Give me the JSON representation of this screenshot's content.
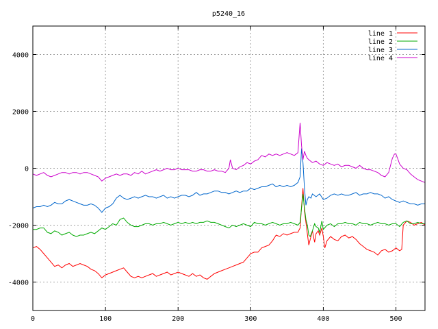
{
  "chart_data": {
    "type": "line",
    "title": "p5240_16",
    "xlabel": "",
    "ylabel": "",
    "xlim": [
      0,
      540
    ],
    "ylim": [
      -5000,
      5000
    ],
    "x_ticks": [
      0,
      100,
      200,
      300,
      400,
      500
    ],
    "y_ticks": [
      -4000,
      -2000,
      0,
      2000,
      4000
    ],
    "grid": true,
    "legend_position": "top-right",
    "series": [
      {
        "name": "line 1",
        "color": "#ff0000",
        "x": [
          0,
          5,
          10,
          15,
          20,
          25,
          30,
          35,
          40,
          45,
          50,
          55,
          60,
          65,
          70,
          75,
          80,
          85,
          90,
          95,
          100,
          105,
          110,
          115,
          120,
          125,
          130,
          135,
          140,
          145,
          150,
          155,
          160,
          165,
          170,
          175,
          180,
          185,
          190,
          195,
          200,
          205,
          210,
          215,
          220,
          225,
          230,
          235,
          240,
          245,
          250,
          255,
          260,
          265,
          270,
          275,
          280,
          285,
          290,
          295,
          300,
          305,
          310,
          315,
          320,
          325,
          330,
          335,
          340,
          345,
          350,
          355,
          360,
          365,
          368,
          370,
          372,
          374,
          376,
          378,
          380,
          382,
          385,
          388,
          390,
          393,
          395,
          398,
          400,
          402,
          405,
          410,
          415,
          420,
          425,
          430,
          435,
          440,
          445,
          450,
          455,
          460,
          465,
          470,
          475,
          480,
          485,
          490,
          495,
          500,
          505,
          508,
          510,
          515,
          520,
          525,
          530,
          535,
          540
        ],
        "y": [
          -2800,
          -2750,
          -2850,
          -3000,
          -3150,
          -3300,
          -3450,
          -3400,
          -3500,
          -3400,
          -3350,
          -3450,
          -3400,
          -3350,
          -3400,
          -3450,
          -3550,
          -3600,
          -3700,
          -3850,
          -3750,
          -3700,
          -3650,
          -3600,
          -3550,
          -3500,
          -3650,
          -3800,
          -3850,
          -3800,
          -3850,
          -3800,
          -3750,
          -3700,
          -3800,
          -3750,
          -3700,
          -3650,
          -3750,
          -3700,
          -3650,
          -3700,
          -3750,
          -3800,
          -3700,
          -3800,
          -3750,
          -3850,
          -3900,
          -3800,
          -3700,
          -3650,
          -3600,
          -3550,
          -3500,
          -3450,
          -3400,
          -3350,
          -3300,
          -3150,
          -3000,
          -2950,
          -2950,
          -2800,
          -2750,
          -2700,
          -2550,
          -2350,
          -2400,
          -2300,
          -2350,
          -2300,
          -2250,
          -2250,
          -2100,
          -1350,
          -700,
          -1500,
          -1900,
          -2300,
          -2700,
          -2500,
          -2200,
          -2600,
          -2300,
          -2200,
          -2350,
          -2100,
          -2400,
          -2800,
          -2550,
          -2400,
          -2500,
          -2550,
          -2400,
          -2350,
          -2450,
          -2400,
          -2500,
          -2650,
          -2750,
          -2850,
          -2900,
          -2950,
          -3050,
          -2900,
          -2850,
          -2950,
          -2900,
          -2800,
          -2900,
          -2850,
          -2000,
          -1850,
          -1900,
          -2000,
          -1950,
          -1900,
          -2000
        ]
      },
      {
        "name": "line 2",
        "color": "#00aa00",
        "x": [
          0,
          5,
          10,
          15,
          20,
          25,
          30,
          35,
          40,
          45,
          50,
          55,
          60,
          65,
          70,
          75,
          80,
          85,
          90,
          95,
          100,
          105,
          110,
          115,
          120,
          125,
          130,
          135,
          140,
          145,
          150,
          155,
          160,
          165,
          170,
          175,
          180,
          185,
          190,
          195,
          200,
          205,
          210,
          215,
          220,
          225,
          230,
          235,
          240,
          245,
          250,
          255,
          260,
          265,
          270,
          275,
          280,
          285,
          290,
          295,
          300,
          305,
          310,
          315,
          320,
          325,
          330,
          335,
          340,
          345,
          350,
          355,
          360,
          365,
          368,
          370,
          372,
          374,
          376,
          378,
          380,
          382,
          385,
          388,
          390,
          393,
          395,
          398,
          400,
          405,
          410,
          415,
          420,
          425,
          430,
          435,
          440,
          445,
          450,
          455,
          460,
          465,
          470,
          475,
          480,
          485,
          490,
          495,
          500,
          505,
          510,
          515,
          520,
          525,
          530,
          535,
          540
        ],
        "y": [
          -2150,
          -2150,
          -2100,
          -2100,
          -2250,
          -2300,
          -2200,
          -2250,
          -2350,
          -2300,
          -2250,
          -2350,
          -2400,
          -2350,
          -2350,
          -2300,
          -2250,
          -2300,
          -2200,
          -2100,
          -2150,
          -2050,
          -1950,
          -2000,
          -1800,
          -1750,
          -1900,
          -2000,
          -2050,
          -2050,
          -2000,
          -1950,
          -1950,
          -2000,
          -1950,
          -1950,
          -1900,
          -1950,
          -2000,
          -1950,
          -1900,
          -1950,
          -1900,
          -1950,
          -1900,
          -1950,
          -1900,
          -1900,
          -1850,
          -1900,
          -1900,
          -1950,
          -2000,
          -2050,
          -2100,
          -2000,
          -2050,
          -2000,
          -1950,
          -2000,
          -2050,
          -1900,
          -1950,
          -1950,
          -2000,
          -1950,
          -1900,
          -1950,
          -2000,
          -1950,
          -1950,
          -1900,
          -1950,
          -2000,
          -1900,
          -1400,
          -900,
          -1400,
          -1800,
          -2000,
          -2350,
          -2400,
          -2200,
          -1950,
          -2050,
          -2100,
          -2250,
          -1850,
          -2150,
          -2000,
          -1950,
          -2050,
          -1950,
          -1950,
          -1900,
          -1950,
          -1950,
          -2000,
          -1900,
          -1950,
          -1950,
          -2000,
          -1950,
          -1900,
          -1950,
          -1950,
          -2000,
          -1950,
          -1950,
          -2050,
          -1900,
          -1850,
          -1950,
          -1950,
          -1900,
          -1950,
          -1950
        ]
      },
      {
        "name": "line 3",
        "color": "#0066cc",
        "x": [
          0,
          5,
          10,
          15,
          20,
          25,
          30,
          35,
          40,
          45,
          50,
          55,
          60,
          65,
          70,
          75,
          80,
          85,
          90,
          95,
          100,
          105,
          110,
          115,
          120,
          125,
          130,
          135,
          140,
          145,
          150,
          155,
          160,
          165,
          170,
          175,
          180,
          185,
          190,
          195,
          200,
          205,
          210,
          215,
          220,
          225,
          230,
          235,
          240,
          245,
          250,
          255,
          260,
          265,
          270,
          275,
          280,
          285,
          290,
          295,
          300,
          305,
          310,
          315,
          320,
          325,
          330,
          335,
          340,
          345,
          350,
          355,
          360,
          365,
          368,
          370,
          372,
          374,
          376,
          378,
          380,
          383,
          385,
          390,
          395,
          400,
          405,
          410,
          415,
          420,
          425,
          430,
          435,
          440,
          445,
          450,
          455,
          460,
          465,
          470,
          475,
          480,
          485,
          490,
          495,
          500,
          505,
          510,
          515,
          520,
          525,
          530,
          535,
          540
        ],
        "y": [
          -1400,
          -1350,
          -1350,
          -1300,
          -1350,
          -1300,
          -1200,
          -1250,
          -1250,
          -1150,
          -1100,
          -1150,
          -1200,
          -1250,
          -1300,
          -1300,
          -1250,
          -1300,
          -1400,
          -1550,
          -1400,
          -1350,
          -1250,
          -1050,
          -950,
          -1050,
          -1100,
          -1050,
          -1000,
          -1050,
          -1000,
          -950,
          -1000,
          -1000,
          -1050,
          -1000,
          -950,
          -1050,
          -1000,
          -1050,
          -1000,
          -950,
          -950,
          -1000,
          -950,
          -850,
          -950,
          -900,
          -900,
          -850,
          -800,
          -800,
          -850,
          -850,
          -900,
          -850,
          -800,
          -850,
          -800,
          -800,
          -700,
          -750,
          -700,
          -650,
          -650,
          -600,
          -550,
          -650,
          -600,
          -650,
          -600,
          -650,
          -600,
          -500,
          -300,
          700,
          200,
          -700,
          -1300,
          -1100,
          -1000,
          -1050,
          -900,
          -1000,
          -900,
          -1100,
          -1050,
          -950,
          -900,
          -950,
          -900,
          -950,
          -950,
          -900,
          -850,
          -950,
          -900,
          -900,
          -850,
          -900,
          -900,
          -950,
          -1050,
          -1000,
          -1100,
          -1150,
          -1200,
          -1150,
          -1200,
          -1250,
          -1250,
          -1300,
          -1250,
          -1250
        ]
      },
      {
        "name": "line 4",
        "color": "#cc00cc",
        "x": [
          0,
          5,
          10,
          15,
          20,
          25,
          30,
          35,
          40,
          45,
          50,
          55,
          60,
          65,
          70,
          75,
          80,
          85,
          90,
          95,
          100,
          105,
          110,
          115,
          120,
          125,
          130,
          135,
          140,
          145,
          150,
          155,
          160,
          165,
          170,
          175,
          180,
          185,
          190,
          195,
          200,
          205,
          210,
          215,
          220,
          225,
          230,
          235,
          240,
          245,
          250,
          255,
          260,
          265,
          270,
          272,
          275,
          280,
          285,
          290,
          295,
          300,
          305,
          310,
          315,
          320,
          325,
          330,
          335,
          340,
          345,
          350,
          355,
          360,
          365,
          368,
          370,
          372,
          374,
          376,
          378,
          380,
          385,
          390,
          395,
          400,
          405,
          410,
          415,
          420,
          425,
          430,
          435,
          440,
          445,
          450,
          455,
          460,
          465,
          470,
          475,
          480,
          485,
          490,
          492,
          495,
          498,
          500,
          503,
          505,
          510,
          515,
          520,
          525,
          530,
          535,
          540
        ],
        "y": [
          -200,
          -250,
          -200,
          -150,
          -250,
          -300,
          -250,
          -200,
          -150,
          -150,
          -200,
          -150,
          -150,
          -200,
          -150,
          -150,
          -200,
          -250,
          -300,
          -450,
          -350,
          -300,
          -250,
          -200,
          -250,
          -200,
          -200,
          -250,
          -150,
          -200,
          -100,
          -200,
          -150,
          -100,
          -50,
          -100,
          -50,
          0,
          -50,
          -50,
          0,
          -50,
          -50,
          -50,
          -100,
          -100,
          -50,
          -50,
          -100,
          -100,
          -50,
          -100,
          -100,
          -150,
          0,
          300,
          0,
          -50,
          50,
          100,
          200,
          150,
          250,
          300,
          450,
          400,
          500,
          450,
          500,
          450,
          500,
          550,
          500,
          450,
          550,
          1600,
          800,
          300,
          600,
          450,
          350,
          300,
          200,
          250,
          150,
          100,
          200,
          150,
          100,
          150,
          50,
          100,
          100,
          50,
          0,
          100,
          0,
          -50,
          -50,
          -100,
          -150,
          -250,
          -300,
          -150,
          50,
          350,
          500,
          500,
          300,
          150,
          0,
          -50,
          -200,
          -300,
          -400,
          -450,
          -500
        ]
      }
    ]
  }
}
